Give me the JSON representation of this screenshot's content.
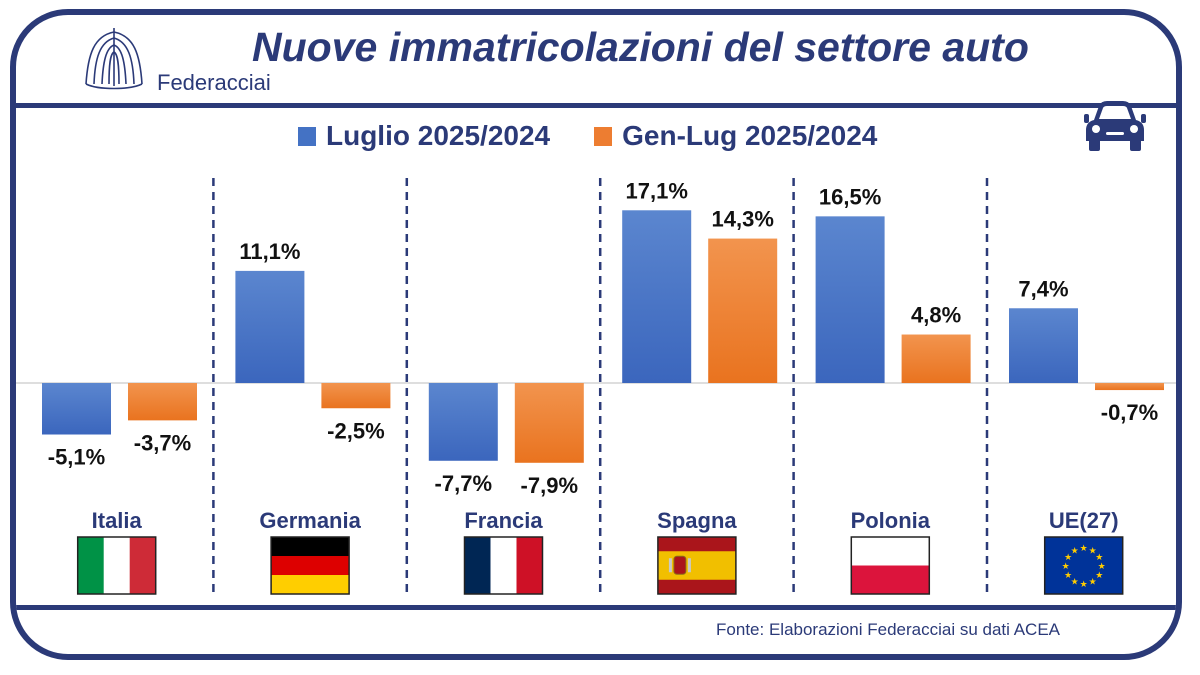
{
  "title": "Nuove immatricolazioni del settore auto",
  "brand": {
    "name": "Federacciai",
    "logo_icon": "federacciai-logo-icon"
  },
  "car_icon": "car-icon",
  "source": "Fonte: Elaborazioni Federacciai su dati ACEA",
  "colors": {
    "frame": "#2b3a78",
    "series_1": "#4472c4",
    "series_2": "#ed7d31"
  },
  "chart_data": {
    "type": "bar",
    "categories": [
      "Italia",
      "Germania",
      "Francia",
      "Spagna",
      "Polonia",
      "UE(27)"
    ],
    "series": [
      {
        "name": "Luglio 2025/2024",
        "values": [
          -5.1,
          11.1,
          -7.7,
          17.1,
          16.5,
          7.4
        ],
        "labels": [
          "-5,1%",
          "11,1%",
          "-7,7%",
          "17,1%",
          "16,5%",
          "7,4%"
        ]
      },
      {
        "name": "Gen-Lug 2025/2024",
        "values": [
          -3.7,
          -2.5,
          -7.9,
          14.3,
          4.8,
          -0.7
        ],
        "labels": [
          "-3,7%",
          "-2,5%",
          "-7,9%",
          "14,3%",
          "4,8%",
          "-0,7%"
        ]
      }
    ],
    "flags": [
      "italy-flag-icon",
      "germany-flag-icon",
      "france-flag-icon",
      "spain-flag-icon",
      "poland-flag-icon",
      "eu-flag-icon"
    ],
    "legend_position": "top",
    "grid": false
  }
}
